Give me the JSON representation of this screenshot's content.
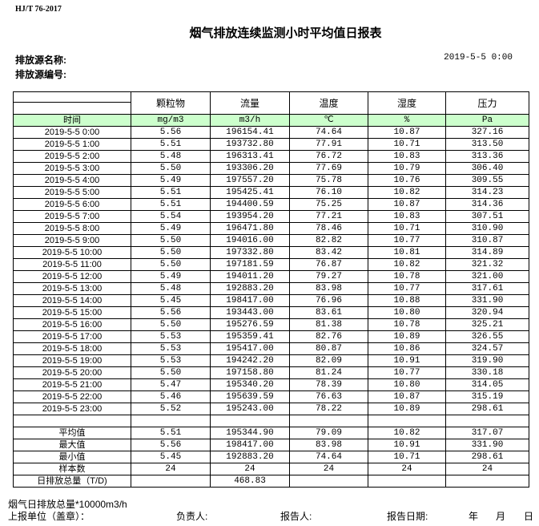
{
  "standard": "HJ/T  76-2017",
  "title": "烟气排放连续监测小时平均值日报表",
  "source_name_label": "排放源名称:",
  "source_code_label": "排放源编号:",
  "report_datetime": "2019-5-5 0:00",
  "table": {
    "headers": [
      "",
      "颗粒物",
      "流量",
      "温度",
      "湿度",
      "压力"
    ],
    "units": [
      "时间",
      "mg/m3",
      "m3/h",
      "℃",
      "%",
      "Pa"
    ],
    "rows": [
      [
        "2019-5-5 0:00",
        "5.56",
        "196154.41",
        "74.64",
        "10.87",
        "327.16"
      ],
      [
        "2019-5-5 1:00",
        "5.51",
        "193732.80",
        "77.91",
        "10.71",
        "313.50"
      ],
      [
        "2019-5-5 2:00",
        "5.48",
        "196313.41",
        "76.72",
        "10.83",
        "313.36"
      ],
      [
        "2019-5-5 3:00",
        "5.50",
        "193306.20",
        "77.69",
        "10.79",
        "306.40"
      ],
      [
        "2019-5-5 4:00",
        "5.49",
        "197557.20",
        "75.78",
        "10.76",
        "309.55"
      ],
      [
        "2019-5-5 5:00",
        "5.51",
        "195425.41",
        "76.10",
        "10.82",
        "314.23"
      ],
      [
        "2019-5-5 6:00",
        "5.51",
        "194400.59",
        "75.25",
        "10.87",
        "314.36"
      ],
      [
        "2019-5-5 7:00",
        "5.54",
        "193954.20",
        "77.21",
        "10.83",
        "307.51"
      ],
      [
        "2019-5-5 8:00",
        "5.49",
        "196471.80",
        "78.46",
        "10.71",
        "310.90"
      ],
      [
        "2019-5-5 9:00",
        "5.50",
        "194016.00",
        "82.82",
        "10.77",
        "310.87"
      ],
      [
        "2019-5-5 10:00",
        "5.50",
        "197332.80",
        "83.42",
        "10.81",
        "314.89"
      ],
      [
        "2019-5-5 11:00",
        "5.50",
        "197181.59",
        "76.87",
        "10.82",
        "321.32"
      ],
      [
        "2019-5-5 12:00",
        "5.49",
        "194011.20",
        "79.27",
        "10.78",
        "321.00"
      ],
      [
        "2019-5-5 13:00",
        "5.48",
        "192883.20",
        "83.98",
        "10.77",
        "317.61"
      ],
      [
        "2019-5-5 14:00",
        "5.45",
        "198417.00",
        "76.96",
        "10.88",
        "331.90"
      ],
      [
        "2019-5-5 15:00",
        "5.56",
        "193443.00",
        "83.61",
        "10.80",
        "320.94"
      ],
      [
        "2019-5-5 16:00",
        "5.50",
        "195276.59",
        "81.38",
        "10.78",
        "325.21"
      ],
      [
        "2019-5-5 17:00",
        "5.53",
        "195359.41",
        "82.76",
        "10.89",
        "326.55"
      ],
      [
        "2019-5-5 18:00",
        "5.53",
        "195417.00",
        "80.87",
        "10.86",
        "324.57"
      ],
      [
        "2019-5-5 19:00",
        "5.53",
        "194242.20",
        "82.09",
        "10.91",
        "319.90"
      ],
      [
        "2019-5-5 20:00",
        "5.50",
        "197158.80",
        "81.24",
        "10.77",
        "330.18"
      ],
      [
        "2019-5-5 21:00",
        "5.47",
        "195340.20",
        "78.39",
        "10.80",
        "314.05"
      ],
      [
        "2019-5-5 22:00",
        "5.46",
        "195639.59",
        "76.63",
        "10.87",
        "315.19"
      ],
      [
        "2019-5-5 23:00",
        "5.52",
        "195243.00",
        "78.22",
        "10.89",
        "298.61"
      ]
    ],
    "summary": [
      [
        "平均值",
        "5.51",
        "195344.90",
        "79.09",
        "10.82",
        "317.07"
      ],
      [
        "最大值",
        "5.56",
        "198417.00",
        "83.98",
        "10.91",
        "331.90"
      ],
      [
        "最小值",
        "5.45",
        "192883.20",
        "74.64",
        "10.71",
        "298.61"
      ],
      [
        "样本数",
        "24",
        "24",
        "24",
        "24",
        "24"
      ],
      [
        "日排放总量（T/D)",
        "",
        "468.83",
        "",
        "",
        ""
      ]
    ]
  },
  "footer": {
    "note": "烟气日排放总量*10000m3/h",
    "unit_label": "上报单位（盖章）：",
    "responsible_label": "负责人:",
    "reporter_label": "报告人:",
    "report_date_label": "报告日期:",
    "year": "年",
    "month": "月",
    "day": "日"
  }
}
